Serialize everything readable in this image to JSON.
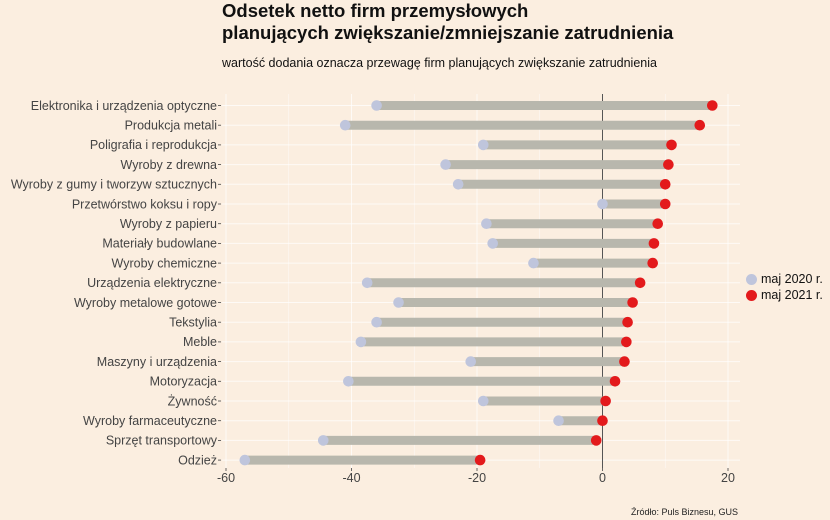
{
  "chart_data": {
    "type": "dumbbell",
    "title_lines": [
      "Odsetek netto firm przemysłowych",
      "planujących zwiększanie/zmniejszanie zatrudnienia"
    ],
    "subtitle": "wartość dodania oznacza przewagę firm planujących zwiększanie zatrudnienia",
    "source": "Źródło: Puls Biznesu, GUS",
    "xlim": [
      -60,
      20
    ],
    "x_ticks": [
      -60,
      -40,
      -20,
      0,
      20
    ],
    "x_tick_labels": [
      "-60",
      "-40",
      "-20",
      "0",
      "20"
    ],
    "grid": true,
    "legend_position": "right",
    "series": [
      {
        "name": "maj 2020 r.",
        "color": "#bfc5dc"
      },
      {
        "name": "maj 2021 r.",
        "color": "#e31a1c"
      }
    ],
    "bar_color": "#b8b7ad",
    "categories": [
      "Elektronika i urządzenia optyczne",
      "Produkcja metali",
      "Poligrafia i reprodukcja",
      "Wyroby z drewna",
      "Wyroby z gumy i tworzyw sztucznych",
      "Przetwórstwo koksu i ropy",
      "Wyroby z papieru",
      "Materiały budowlane",
      "Wyroby chemiczne",
      "Urządzenia elektryczne",
      "Wyroby metalowe gotowe",
      "Tekstylia",
      "Meble",
      "Maszyny i urządzenia",
      "Motoryzacja",
      "Żywność",
      "Wyroby farmaceutyczne",
      "Sprzęt transportowy",
      "Odzież"
    ],
    "values_2020": [
      -36,
      -41,
      -19,
      -25,
      -23,
      0,
      -18.5,
      -17.5,
      -11,
      -37.5,
      -32.5,
      -36,
      -38.5,
      -21,
      -40.5,
      -19,
      -7,
      -44.5,
      -57
    ],
    "values_2021": [
      17.5,
      15.5,
      11,
      10.5,
      10,
      10,
      8.8,
      8.2,
      8,
      6,
      4.8,
      4,
      3.8,
      3.5,
      2,
      0.5,
      0,
      -1,
      -19.5
    ]
  }
}
